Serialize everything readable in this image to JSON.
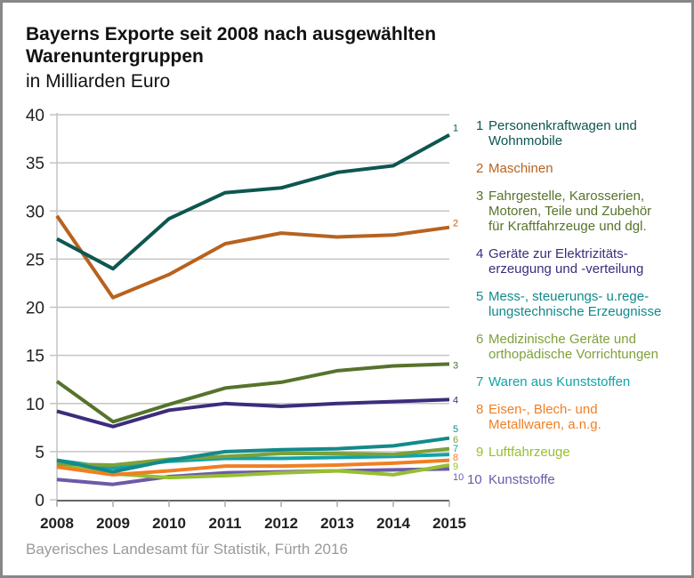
{
  "title": "Bayerns Exporte seit 2008 nach ausgewählten Warenuntergruppen",
  "subtitle": "in Milliarden Euro",
  "source": "Bayerisches Landesamt für Statistik, Fürth 2016",
  "chart_data": {
    "type": "line",
    "title": "Bayerns Exporte seit 2008 nach ausgewählten Warenuntergruppen",
    "subtitle": "in Milliarden Euro",
    "xlabel": "",
    "ylabel": "",
    "x": [
      2008,
      2009,
      2010,
      2011,
      2012,
      2013,
      2014,
      2015
    ],
    "x_tick_labels": [
      "2008",
      "2009",
      "2010",
      "2011",
      "2012",
      "2013",
      "2014",
      "2015"
    ],
    "y_ticks": [
      0,
      5,
      10,
      15,
      20,
      25,
      30,
      35,
      40
    ],
    "y_tick_labels": [
      "0",
      "5",
      "10",
      "15",
      "20",
      "25",
      "30",
      "35",
      "40"
    ],
    "ylim": [
      0,
      40
    ],
    "grid": "horizontal",
    "legend_placement": "right",
    "series": [
      {
        "id": "1",
        "name": "Personenkraftwagen und Wohnmobile",
        "legend_text": "Personenkraftwagen und\nWohnmobile",
        "color": "#0d5750",
        "values": [
          27.1,
          24.0,
          29.2,
          31.9,
          32.4,
          34.0,
          34.7,
          37.9
        ]
      },
      {
        "id": "2",
        "name": "Maschinen",
        "legend_text": "Maschinen",
        "color": "#b8621e",
        "values": [
          29.5,
          21.0,
          23.4,
          26.6,
          27.7,
          27.3,
          27.5,
          28.3
        ]
      },
      {
        "id": "3",
        "name": "Fahrgestelle, Karosserien, Motoren, Teile und Zubehör für Kraftfahrzeuge und dgl.",
        "legend_text": "Fahrgestelle, Karosserien,\nMotoren, Teile und Zubehör\nfür Kraftfahrzeuge und dgl.",
        "color": "#56732b",
        "values": [
          12.3,
          8.1,
          9.9,
          11.6,
          12.2,
          13.4,
          13.9,
          14.1
        ]
      },
      {
        "id": "4",
        "name": "Geräte zur Elektrizitätserzeugung und -verteilung",
        "legend_text": "Geräte zur Elektrizitäts-\nerzeugung und -verteilung",
        "color": "#3d2c7c",
        "values": [
          9.2,
          7.6,
          9.3,
          10.0,
          9.7,
          10.0,
          10.2,
          10.4
        ]
      },
      {
        "id": "5",
        "name": "Mess-, steuerungs- u.regelungstechnische Erzeugnisse",
        "legend_text": "Mess-, steuerungs- u.rege-\nlungstechnische Erzeugnisse",
        "color": "#128a8a",
        "values": [
          4.1,
          2.9,
          4.1,
          5.0,
          5.2,
          5.3,
          5.6,
          6.4
        ]
      },
      {
        "id": "6",
        "name": "Medizinische Geräte und orthopädische Vorrichtungen",
        "legend_text": "Medizinische Geräte und\northopädische Vorrichtungen",
        "color": "#7ea03a",
        "values": [
          3.7,
          3.6,
          4.2,
          4.5,
          4.8,
          4.8,
          4.7,
          5.3
        ]
      },
      {
        "id": "7",
        "name": "Waren aus Kunststoffen",
        "legend_text": "Waren aus Kunststoffen",
        "color": "#11a3a8",
        "values": [
          4.1,
          3.3,
          4.0,
          4.3,
          4.3,
          4.4,
          4.5,
          4.7
        ]
      },
      {
        "id": "8",
        "name": "Eisen-, Blech- und Metallwaren, a.n.g.",
        "legend_text": "Eisen-, Blech- und\nMetallwaren, a.n.g.",
        "color": "#f07f22",
        "values": [
          3.4,
          2.6,
          3.0,
          3.5,
          3.5,
          3.6,
          3.8,
          4.1
        ]
      },
      {
        "id": "9",
        "name": "Luftfahrzeuge",
        "legend_text": "Luftfahrzeuge",
        "color": "#96bf31",
        "values": [
          3.6,
          2.7,
          2.3,
          2.5,
          2.8,
          3.0,
          2.6,
          3.6
        ]
      },
      {
        "id": "10",
        "name": "Kunststoffe",
        "legend_text": "Kunststoffe",
        "color": "#6c5aa8",
        "values": [
          2.1,
          1.6,
          2.4,
          2.8,
          2.9,
          3.0,
          3.1,
          3.2
        ]
      }
    ]
  }
}
